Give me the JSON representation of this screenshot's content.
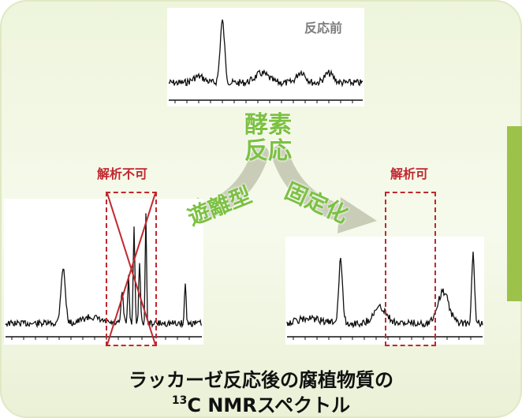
{
  "labels": {
    "before": "反応前",
    "enzyme_line1": "酵素",
    "enzyme_line2": "反応",
    "free": "遊離型",
    "fixed": "固定化",
    "not_analyzable": "解析不可",
    "analyzable": "解析可"
  },
  "caption": {
    "line1": "ラッカーゼ反応後の腐植物質の",
    "line2_sup": "13",
    "line2_text": "C NMRスペクトル"
  },
  "colors": {
    "accent_green": "#7cc142",
    "tab_green": "#9dc24a",
    "warning_red": "#c0282f",
    "gray_label": "#7c7c7c",
    "arrow_gray": "#c9cdb8"
  },
  "icons": {
    "cross": "x-mark-icon"
  }
}
